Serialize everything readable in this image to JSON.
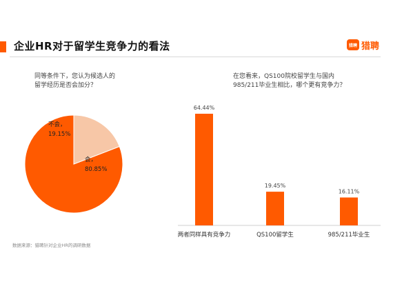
{
  "colors": {
    "accent": "#ff5a00",
    "light": "#f7c7a7",
    "text": "#333333"
  },
  "header": {
    "title": "企业HR对于留学生竞争力的看法"
  },
  "logo": {
    "icon_text": "猎聘",
    "text": "猎聘"
  },
  "source": "数据来源：猎聘针对企业HR的调研数据",
  "chart_data": [
    {
      "type": "pie",
      "title": [
        "同等条件下，您认为候选人的",
        "留学经历是否会加分？"
      ],
      "slices": [
        {
          "label": "会，",
          "value": 80.85,
          "display": "80.85%",
          "color": "#ff5a00"
        },
        {
          "label": "不会，",
          "value": 19.15,
          "display": "19.15%",
          "color": "#f7c7a7"
        }
      ]
    },
    {
      "type": "bar",
      "title": [
        "在您看来，QS100院校留学生与国内",
        "985/211毕业生相比，哪个更有竞争力？"
      ],
      "categories": [
        "两者同样具有竞争力",
        "QS100留学生",
        "985/211毕业生"
      ],
      "values": [
        64.44,
        19.45,
        16.11
      ],
      "value_labels": [
        "64.44%",
        "19.45%",
        "16.11%"
      ],
      "ylim": [
        0,
        70
      ],
      "grid": false
    }
  ]
}
